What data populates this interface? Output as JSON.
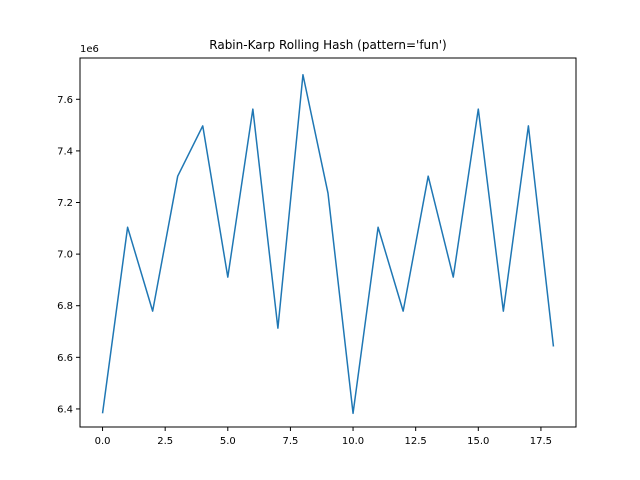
{
  "chart_data": {
    "type": "line",
    "title": "Rabin-Karp Rolling Hash (pattern='fun')",
    "xlabel": "",
    "ylabel": "",
    "y_offset_label": "1e6",
    "xlim": [
      -0.9,
      18.9
    ],
    "ylim": [
      6.33,
      7.76
    ],
    "x_ticks": [
      0.0,
      2.5,
      5.0,
      7.5,
      10.0,
      12.5,
      15.0,
      17.5
    ],
    "x_tick_labels": [
      "0.0",
      "2.5",
      "5.0",
      "7.5",
      "10.0",
      "12.5",
      "15.0",
      "17.5"
    ],
    "y_ticks": [
      6.4,
      6.6,
      6.8,
      7.0,
      7.2,
      7.4,
      7.6
    ],
    "y_tick_labels": [
      "6.4",
      "6.6",
      "6.8",
      "7.0",
      "7.2",
      "7.4",
      "7.6"
    ],
    "grid": false,
    "line_color": "#1f77b4",
    "series": [
      {
        "x": [
          0,
          1,
          2,
          3,
          4,
          5,
          6,
          7,
          8,
          9,
          10,
          11,
          12,
          13,
          14,
          15,
          16,
          17,
          18
        ],
        "y": [
          6.383,
          7.104,
          6.779,
          7.302,
          7.497,
          6.911,
          7.562,
          6.713,
          7.695,
          7.236,
          6.383,
          7.104,
          6.779,
          7.302,
          6.911,
          7.562,
          6.779,
          7.497,
          6.642
        ]
      }
    ]
  }
}
